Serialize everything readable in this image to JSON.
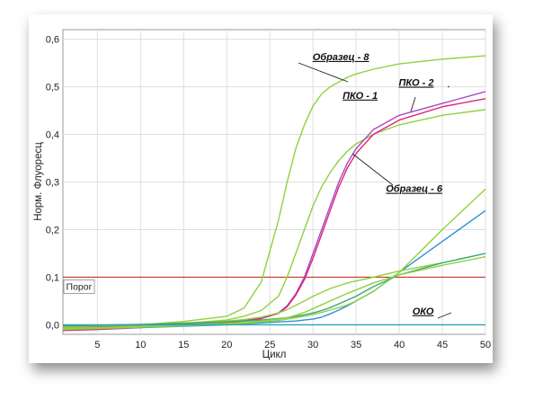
{
  "chart_data": {
    "type": "line",
    "xlabel": "Цикл",
    "ylabel": "Норм. Флуоресц",
    "xlim": [
      1,
      50
    ],
    "ylim": [
      -0.02,
      0.62
    ],
    "xticks": [
      5,
      10,
      15,
      20,
      25,
      30,
      35,
      40,
      45,
      50
    ],
    "yticks": [
      0.0,
      0.1,
      0.2,
      0.3,
      0.4,
      0.5,
      0.6
    ],
    "xtick_labels": [
      "5",
      "10",
      "15",
      "20",
      "25",
      "30",
      "35",
      "40",
      "45",
      "50"
    ],
    "ytick_labels": [
      "0,0",
      "0,1",
      "0,2",
      "0,3",
      "0,4",
      "0,5",
      "0,6"
    ],
    "grid": true,
    "threshold": {
      "label": "Порог",
      "value": 0.1,
      "color": "#c0392b"
    },
    "x": [
      1,
      5,
      10,
      15,
      20,
      22,
      24,
      26,
      27,
      28,
      29,
      30,
      31,
      32,
      33,
      34,
      35,
      37,
      40,
      45,
      50
    ],
    "series": [
      {
        "color": "#8fd13f",
        "values": [
          -0.006,
          -0.004,
          0.0,
          0.007,
          0.018,
          0.035,
          0.09,
          0.22,
          0.3,
          0.37,
          0.42,
          0.46,
          0.485,
          0.5,
          0.51,
          0.52,
          0.527,
          0.537,
          0.548,
          0.558,
          0.565
        ]
      },
      {
        "color": "#8fd13f",
        "values": [
          -0.008,
          -0.006,
          -0.002,
          0.003,
          0.01,
          0.018,
          0.03,
          0.06,
          0.1,
          0.15,
          0.2,
          0.25,
          0.29,
          0.32,
          0.345,
          0.365,
          0.38,
          0.4,
          0.42,
          0.44,
          0.452
        ]
      },
      {
        "color": "#a44bc4",
        "values": [
          -0.004,
          -0.003,
          -0.001,
          0.002,
          0.006,
          0.009,
          0.014,
          0.025,
          0.04,
          0.065,
          0.1,
          0.15,
          0.2,
          0.25,
          0.3,
          0.34,
          0.37,
          0.41,
          0.44,
          0.465,
          0.49
        ]
      },
      {
        "color": "#e0247a",
        "values": [
          -0.012,
          -0.01,
          -0.006,
          0.0,
          0.004,
          0.008,
          0.013,
          0.024,
          0.038,
          0.062,
          0.095,
          0.14,
          0.19,
          0.24,
          0.29,
          0.33,
          0.36,
          0.4,
          0.43,
          0.458,
          0.475
        ]
      },
      {
        "color": "#2f8ed8",
        "values": [
          -0.01,
          -0.008,
          -0.006,
          -0.003,
          0.0,
          0.002,
          0.004,
          0.006,
          0.007,
          0.008,
          0.01,
          0.012,
          0.016,
          0.023,
          0.031,
          0.04,
          0.05,
          0.07,
          0.11,
          0.175,
          0.24
        ]
      },
      {
        "color": "#8fd13f",
        "values": [
          -0.01,
          -0.008,
          -0.005,
          -0.002,
          0.001,
          0.003,
          0.006,
          0.009,
          0.012,
          0.015,
          0.018,
          0.022,
          0.026,
          0.031,
          0.036,
          0.042,
          0.05,
          0.07,
          0.11,
          0.2,
          0.285
        ]
      },
      {
        "color": "#8fd13f",
        "values": [
          -0.004,
          -0.002,
          0.0,
          0.004,
          0.008,
          0.011,
          0.016,
          0.025,
          0.032,
          0.041,
          0.05,
          0.06,
          0.068,
          0.076,
          0.082,
          0.088,
          0.092,
          0.1,
          0.113,
          0.13,
          0.15
        ]
      },
      {
        "color": "#3aa87a",
        "values": [
          -0.002,
          -0.001,
          0.001,
          0.003,
          0.006,
          0.008,
          0.01,
          0.013,
          0.015,
          0.018,
          0.021,
          0.025,
          0.03,
          0.036,
          0.044,
          0.052,
          0.06,
          0.08,
          0.105,
          0.13,
          0.15
        ]
      },
      {
        "color": "#8fd13f",
        "values": [
          -0.008,
          -0.006,
          -0.003,
          0.0,
          0.003,
          0.005,
          0.008,
          0.012,
          0.015,
          0.02,
          0.026,
          0.034,
          0.042,
          0.05,
          0.058,
          0.066,
          0.073,
          0.088,
          0.105,
          0.125,
          0.143
        ]
      },
      {
        "color": "#2aa3b6",
        "values": [
          0.0,
          0.0,
          0.0,
          0.0,
          0.0,
          0.0,
          0.0,
          0.0,
          0.0,
          0.0,
          0.0,
          0.0,
          0.0,
          0.0,
          0.0,
          0.0,
          0.0,
          0.0,
          0.0,
          0.0,
          0.0
        ]
      }
    ],
    "annotations": [
      {
        "text": "Образец - 8",
        "x": 36.5,
        "y": 0.556
      },
      {
        "text": "ПКО - 2",
        "x": 44,
        "y": 0.502
      },
      {
        "text": "ПКО - 1",
        "x": 37.5,
        "y": 0.475
      },
      {
        "text": "Образец - 6",
        "x": 45,
        "y": 0.279
      },
      {
        "text": "ОКО",
        "x": 44,
        "y": 0.022
      }
    ]
  }
}
